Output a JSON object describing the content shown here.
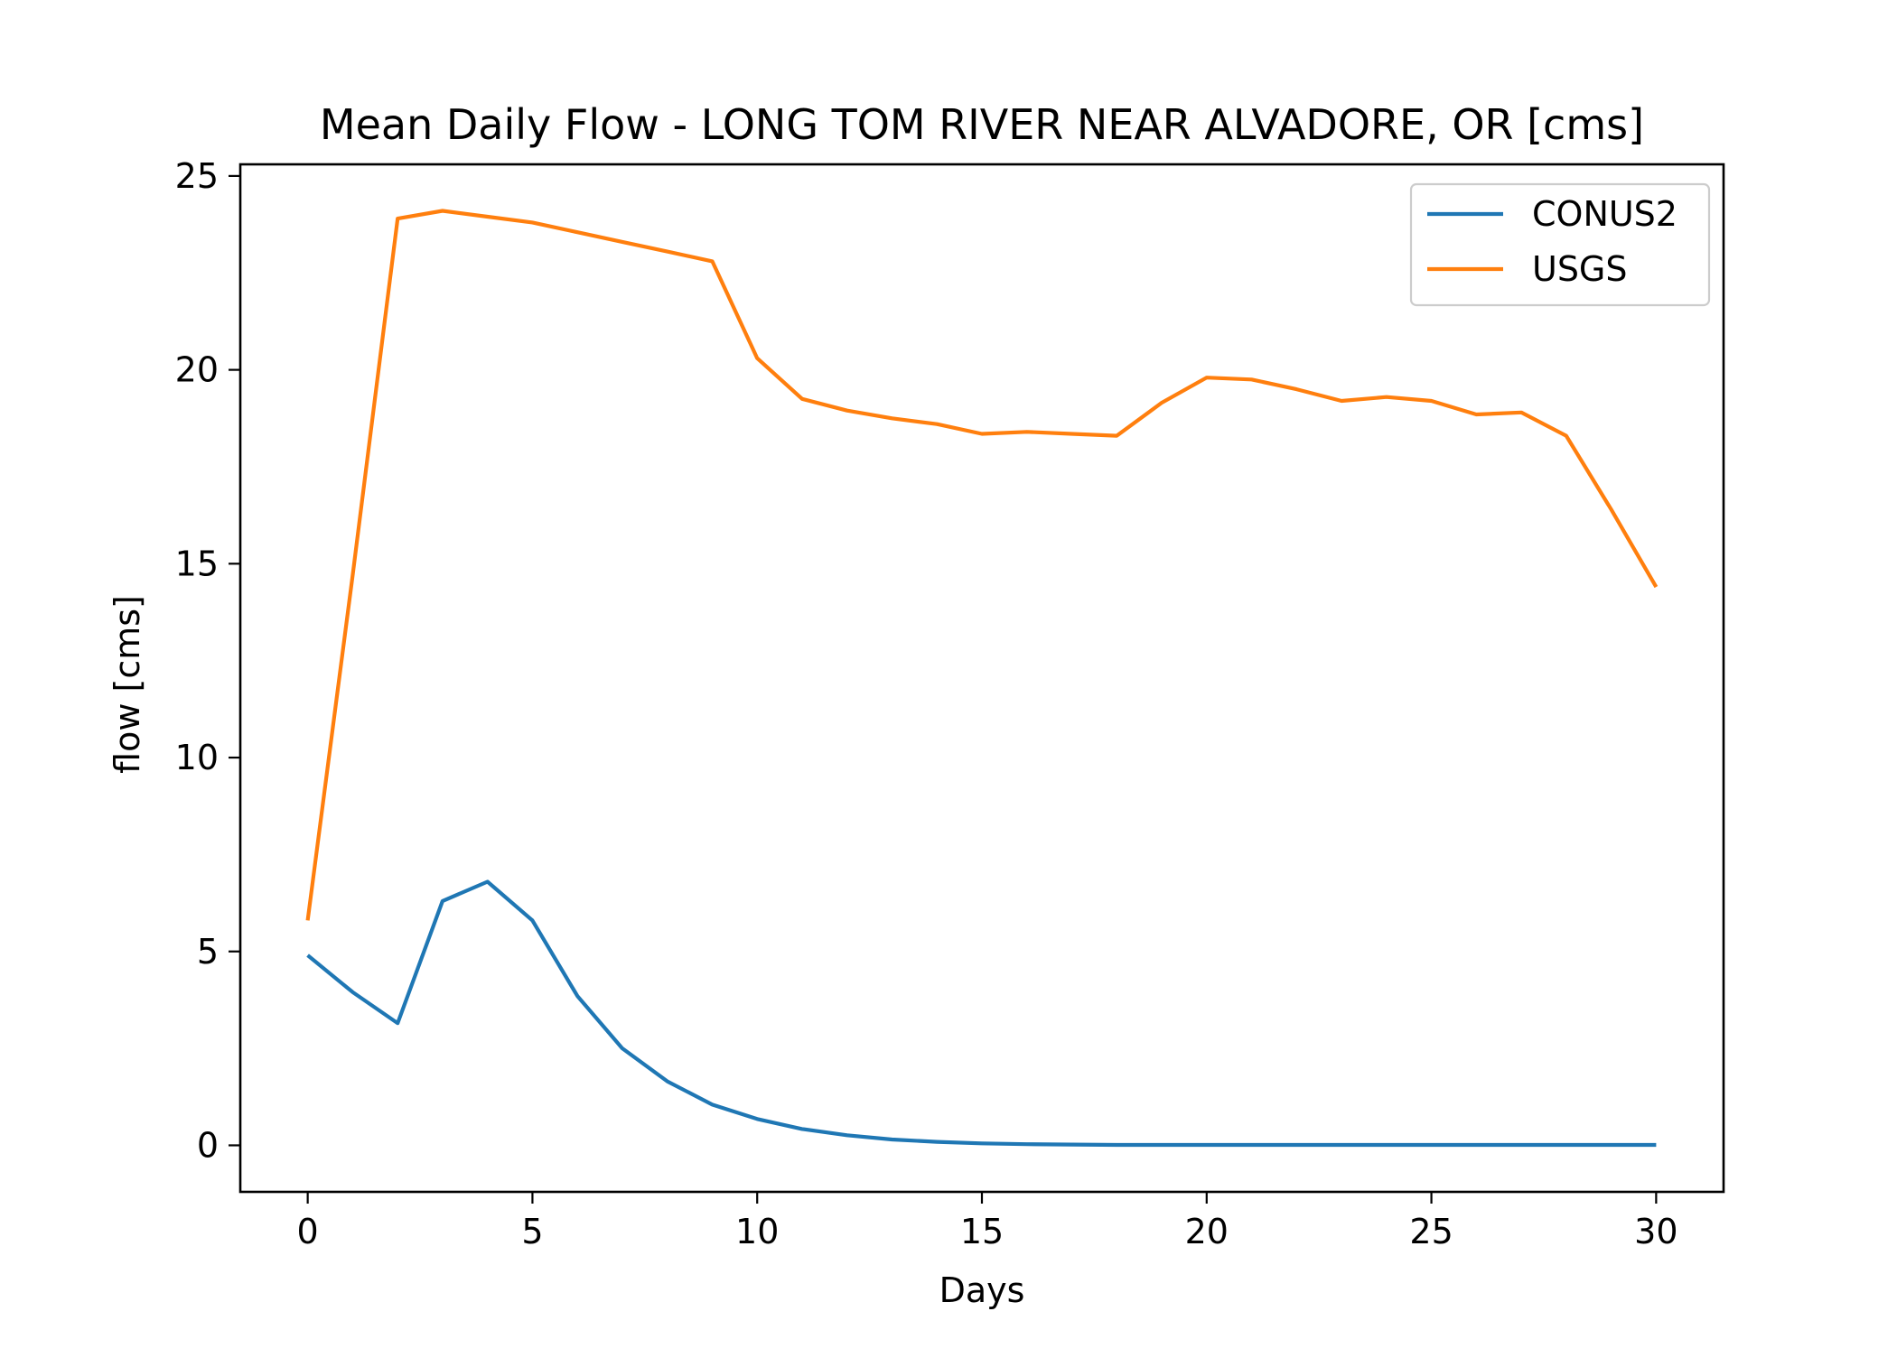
{
  "chart_data": {
    "type": "line",
    "title": "Mean Daily Flow - LONG TOM RIVER NEAR ALVADORE, OR [cms]",
    "xlabel": "Days",
    "ylabel": "flow [cms]",
    "xlim": [
      -1.5,
      31.5
    ],
    "ylim": [
      -1.2,
      25.3
    ],
    "xticks": [
      0,
      5,
      10,
      15,
      20,
      25,
      30
    ],
    "yticks": [
      0,
      5,
      10,
      15,
      20,
      25
    ],
    "grid": false,
    "legend_position": "top-right",
    "x": [
      0,
      1,
      2,
      3,
      4,
      5,
      6,
      7,
      8,
      9,
      10,
      11,
      12,
      13,
      14,
      15,
      16,
      17,
      18,
      19,
      20,
      21,
      22,
      23,
      24,
      25,
      26,
      27,
      28,
      29,
      30
    ],
    "series": [
      {
        "name": "CONUS2",
        "color": "#1f77b4",
        "values": [
          4.9,
          3.95,
          3.15,
          6.3,
          6.8,
          5.8,
          3.85,
          2.5,
          1.65,
          1.05,
          0.68,
          0.42,
          0.26,
          0.15,
          0.09,
          0.05,
          0.03,
          0.02,
          0.01,
          0.01,
          0.01,
          0.01,
          0.01,
          0.01,
          0.01,
          0.01,
          0.01,
          0.01,
          0.01,
          0.01,
          0.01
        ]
      },
      {
        "name": "USGS",
        "color": "#ff7f0e",
        "values": [
          5.8,
          14.7,
          23.9,
          24.1,
          23.95,
          23.8,
          23.55,
          23.3,
          23.05,
          22.8,
          20.3,
          19.25,
          18.95,
          18.75,
          18.6,
          18.35,
          18.4,
          18.35,
          18.3,
          19.15,
          19.8,
          19.75,
          19.5,
          19.2,
          19.3,
          19.2,
          18.85,
          18.9,
          18.3,
          16.4,
          14.4
        ]
      }
    ]
  }
}
